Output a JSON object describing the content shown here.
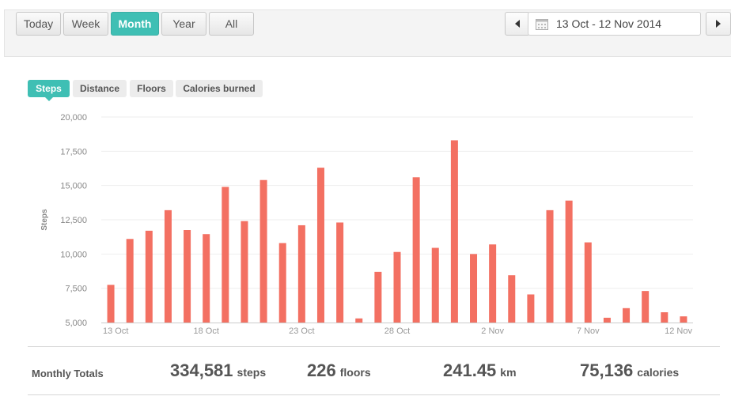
{
  "toolbar": {
    "periods": [
      "Today",
      "Week",
      "Month",
      "Year",
      "All"
    ],
    "active_period": "Month",
    "date_range": "13 Oct - 12 Nov 2014"
  },
  "metric_tabs": {
    "items": [
      "Steps",
      "Distance",
      "Floors",
      "Calories burned"
    ],
    "active": "Steps"
  },
  "colors": {
    "accent": "#3fbfb4",
    "bar": "#f37062"
  },
  "chart_data": {
    "type": "bar",
    "ylabel": "Steps",
    "ylim": [
      5000,
      20000
    ],
    "yticks": [
      "5,000",
      "7,500",
      "10,000",
      "12,500",
      "15,000",
      "17,500",
      "20,000"
    ],
    "categories": [
      "13 Oct",
      "14 Oct",
      "15 Oct",
      "16 Oct",
      "17 Oct",
      "18 Oct",
      "19 Oct",
      "20 Oct",
      "21 Oct",
      "22 Oct",
      "23 Oct",
      "24 Oct",
      "25 Oct",
      "26 Oct",
      "27 Oct",
      "28 Oct",
      "29 Oct",
      "30 Oct",
      "31 Oct",
      "1 Nov",
      "2 Nov",
      "3 Nov",
      "4 Nov",
      "5 Nov",
      "6 Nov",
      "7 Nov",
      "8 Nov",
      "9 Nov",
      "10 Nov",
      "11 Nov",
      "12 Nov"
    ],
    "xtick_labels": [
      "13 Oct",
      "18 Oct",
      "23 Oct",
      "28 Oct",
      "2 Nov",
      "7 Nov",
      "12 Nov"
    ],
    "values": [
      7750,
      11100,
      11700,
      13200,
      11750,
      11450,
      14900,
      12400,
      15400,
      10800,
      12100,
      16300,
      12300,
      5300,
      8700,
      10150,
      15600,
      10450,
      18300,
      10000,
      10700,
      8450,
      7050,
      13200,
      13900,
      10850,
      5350,
      6050,
      7300,
      5750,
      5450
    ],
    "grid": true,
    "legend": "none"
  },
  "totals": {
    "title": "Monthly Totals",
    "steps": {
      "value": "334,581",
      "unit": "steps"
    },
    "floors": {
      "value": "226",
      "unit": "floors"
    },
    "distance": {
      "value": "241.45",
      "unit": "km"
    },
    "calories": {
      "value": "75,136",
      "unit": "calories"
    }
  }
}
